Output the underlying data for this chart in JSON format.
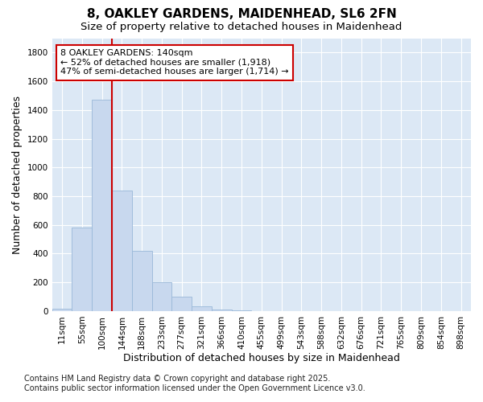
{
  "title": "8, OAKLEY GARDENS, MAIDENHEAD, SL6 2FN",
  "subtitle": "Size of property relative to detached houses in Maidenhead",
  "xlabel": "Distribution of detached houses by size in Maidenhead",
  "ylabel": "Number of detached properties",
  "categories": [
    "11sqm",
    "55sqm",
    "100sqm",
    "144sqm",
    "188sqm",
    "233sqm",
    "277sqm",
    "321sqm",
    "366sqm",
    "410sqm",
    "455sqm",
    "499sqm",
    "543sqm",
    "588sqm",
    "632sqm",
    "676sqm",
    "721sqm",
    "765sqm",
    "809sqm",
    "854sqm",
    "898sqm"
  ],
  "values": [
    15,
    580,
    1470,
    840,
    420,
    200,
    100,
    35,
    10,
    5,
    2,
    1,
    0,
    0,
    0,
    0,
    0,
    0,
    0,
    0,
    0
  ],
  "bar_color": "#c8d8ee",
  "bar_edge_color": "#9ab8d8",
  "vline_x_index": 3,
  "vline_color": "#cc0000",
  "annotation_line1": "8 OAKLEY GARDENS: 140sqm",
  "annotation_line2": "← 52% of detached houses are smaller (1,918)",
  "annotation_line3": "47% of semi-detached houses are larger (1,714) →",
  "annotation_box_color": "#ffffff",
  "annotation_box_edge_color": "#cc0000",
  "ylim": [
    0,
    1900
  ],
  "yticks": [
    0,
    200,
    400,
    600,
    800,
    1000,
    1200,
    1400,
    1600,
    1800
  ],
  "footer_line1": "Contains HM Land Registry data © Crown copyright and database right 2025.",
  "footer_line2": "Contains public sector information licensed under the Open Government Licence v3.0.",
  "bg_color": "#ffffff",
  "plot_bg_color": "#dce8f5",
  "title_fontsize": 11,
  "subtitle_fontsize": 9.5,
  "axis_label_fontsize": 9,
  "tick_fontsize": 7.5,
  "annotation_fontsize": 8,
  "footer_fontsize": 7
}
